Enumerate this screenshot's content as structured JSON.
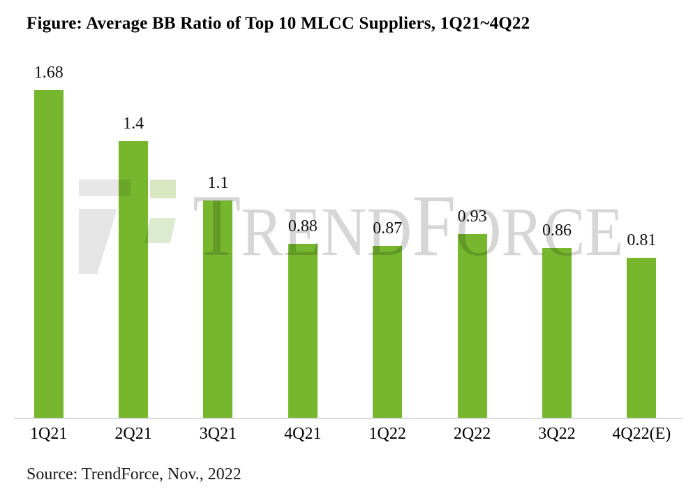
{
  "title": "Figure: Average BB Ratio of Top 10 MLCC Suppliers, 1Q21~4Q22",
  "source": "Source: TrendForce, Nov., 2022",
  "watermark": {
    "text": "TRENDFORCE",
    "segments": [
      {
        "text": "T",
        "big": true
      },
      {
        "text": "REND",
        "big": false
      },
      {
        "text": "F",
        "big": true
      },
      {
        "text": "ORCE",
        "big": false
      }
    ],
    "text_color": "#d6d6d6",
    "logo_gray": "#e7e7e7",
    "logo_green": "#d9e8c2"
  },
  "chart_data": {
    "type": "bar",
    "title": "Average BB Ratio of Top 10 MLCC Suppliers, 1Q21~4Q22",
    "categories": [
      "1Q21",
      "2Q21",
      "3Q21",
      "4Q21",
      "1Q22",
      "2Q22",
      "3Q22",
      "4Q22(E)"
    ],
    "values": [
      1.68,
      1.4,
      1.1,
      0.88,
      0.87,
      0.93,
      0.86,
      0.81
    ],
    "value_labels": [
      "1.68",
      "1.4",
      "1.1",
      "0.88",
      "0.87",
      "0.93",
      "0.86",
      "0.81"
    ],
    "bar_color": "#76b72d",
    "xlabel": "",
    "ylabel": "",
    "ylim": [
      0,
      1.8
    ],
    "grid": false,
    "legend": false,
    "axis_line_color": "#d9d9d9"
  }
}
